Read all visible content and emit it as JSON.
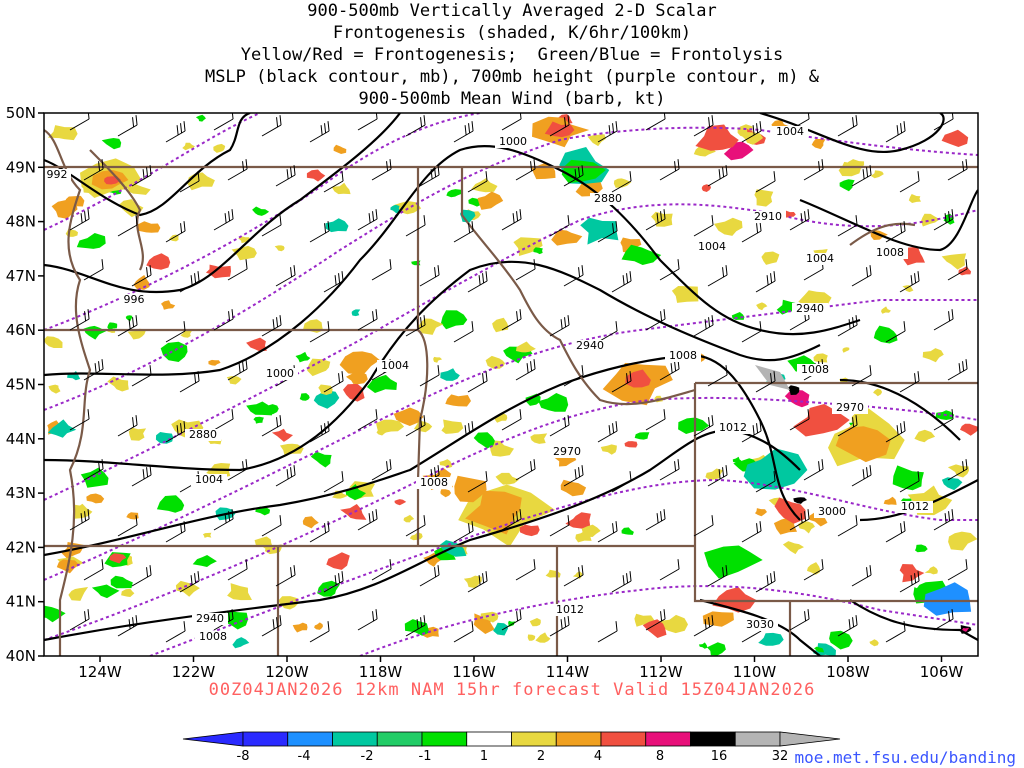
{
  "title_lines": [
    "900-500mb Vertically Averaged 2-D Scalar",
    "Frontogenesis (shaded, K/6hr/100km)",
    "Yellow/Red = Frontogenesis;  Green/Blue = Frontolysis",
    "MSLP (black contour, mb), 700mb height (purple contour, m) &",
    "900-500mb Mean Wind (barb, kt)"
  ],
  "lat_labels": [
    "50N",
    "49N",
    "48N",
    "47N",
    "46N",
    "45N",
    "44N",
    "43N",
    "42N",
    "41N",
    "40N"
  ],
  "lon_labels": [
    "124W",
    "122W",
    "120W",
    "118W",
    "116W",
    "114W",
    "112W",
    "110W",
    "108W",
    "106W"
  ],
  "valid_text": "00Z04JAN2026 12km NAM 15hr forecast Valid 15Z04JAN2026",
  "colorbar": {
    "labels": [
      "-8",
      "-4",
      "-2",
      "-1",
      "1",
      "2",
      "4",
      "8",
      "16",
      "32"
    ],
    "colors": [
      "#2a2aff",
      "#1e90ff",
      "#00c8a0",
      "#22cc66",
      "#00e000",
      "#ffffff",
      "#e8d840",
      "#f0a020",
      "#f05040",
      "#e8107a",
      "#000000",
      "#b4b4b4"
    ]
  },
  "contour_labels": {
    "mslp": [
      "992",
      "996",
      "1000",
      "1004",
      "1004",
      "1004",
      "1008",
      "1008",
      "1008",
      "1008",
      "1012",
      "1012",
      "1012",
      "1004",
      "1004",
      "1000",
      "1008"
    ],
    "height": [
      "2880",
      "2880",
      "2910",
      "2940",
      "2940",
      "2940",
      "2970",
      "2970",
      "3000",
      "3030"
    ]
  },
  "mslp_positions": [],
  "credit": "moe.met.fsu.edu/banding",
  "colors": {
    "mslp": "#000000",
    "height": "#9a28c8",
    "boundary": "#7a5a48",
    "valid_text": "#ff6060",
    "credit": "#3a55ff"
  }
}
